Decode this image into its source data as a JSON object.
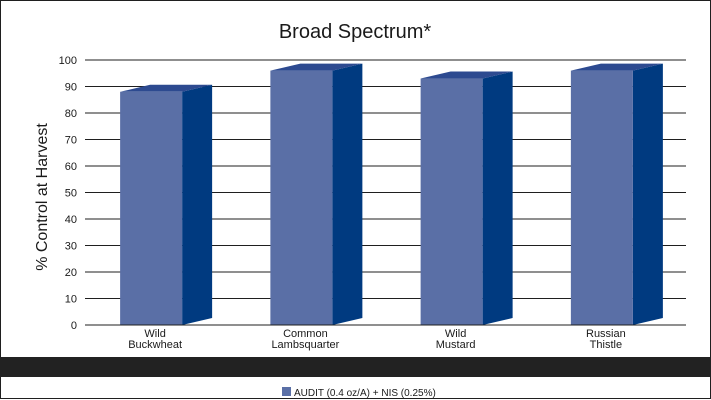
{
  "chart_data": {
    "type": "bar",
    "title": "Broad Spectrum*",
    "xlabel": "",
    "ylabel": "% Control at Harvest",
    "ylim": [
      0,
      100
    ],
    "yticks": [
      0,
      10,
      20,
      30,
      40,
      50,
      60,
      70,
      80,
      90,
      100
    ],
    "grid": true,
    "legend_position": "bottom",
    "categories": [
      [
        "Wild",
        "Buckwheat"
      ],
      [
        "Common",
        "Lambsquarter"
      ],
      [
        "Wild",
        "Mustard"
      ],
      [
        "Russian",
        "Thistle"
      ]
    ],
    "series": [
      {
        "name": "AUDIT (0.4 oz/A) + NIS (0.25%)",
        "values": [
          88,
          96,
          93,
          96
        ]
      }
    ]
  },
  "colors": {
    "bar_front": "#5a6fa6",
    "bar_side": "#003a80",
    "bar_top": "#2d4a90",
    "frame_border": "#1f1f1f",
    "bottom_band": "#222222",
    "legend_swatch": "#5a6fa6"
  }
}
